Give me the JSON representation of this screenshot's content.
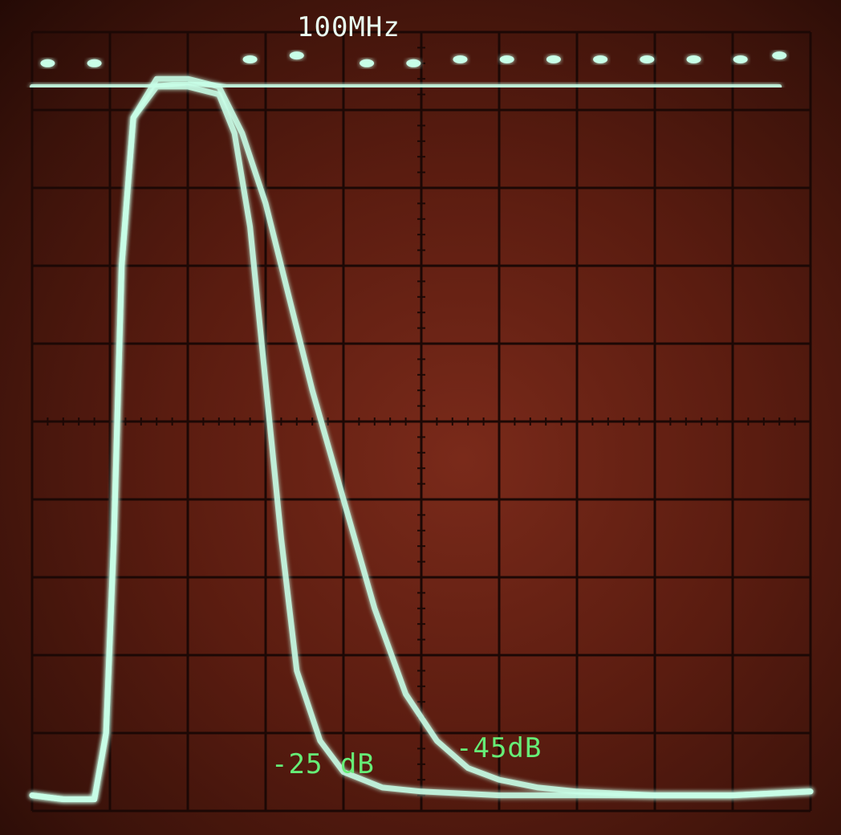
{
  "chart_data": {
    "type": "line",
    "title": "100MHz",
    "xlabel": "",
    "ylabel": "",
    "xlim": [
      0,
      10
    ],
    "ylim": [
      0,
      10
    ],
    "grid": true,
    "grid_divisions": {
      "x": 10,
      "y": 10
    },
    "series": [
      {
        "x": [
          0.0,
          0.4,
          0.8,
          0.95,
          1.05,
          1.15,
          1.3,
          1.6,
          2.0,
          2.4,
          2.6,
          2.8,
          3.0,
          3.2,
          3.4,
          3.7,
          4.0,
          4.5,
          5.0,
          6.0,
          7.0,
          8.0,
          9.0,
          10.0
        ],
        "y": [
          0.2,
          0.15,
          0.15,
          1.0,
          3.5,
          7.0,
          8.9,
          9.3,
          9.3,
          9.2,
          8.7,
          7.5,
          5.5,
          3.5,
          1.8,
          0.9,
          0.5,
          0.3,
          0.25,
          0.2,
          0.2,
          0.2,
          0.2,
          0.25
        ]
      },
      {
        "x": [
          0.0,
          0.4,
          0.8,
          0.95,
          1.05,
          1.15,
          1.3,
          1.6,
          2.0,
          2.4,
          2.7,
          3.0,
          3.3,
          3.6,
          4.0,
          4.4,
          4.8,
          5.2,
          5.6,
          6.0,
          6.5,
          7.0,
          8.0,
          9.0,
          10.0
        ],
        "y": [
          0.2,
          0.15,
          0.15,
          1.0,
          3.5,
          7.0,
          8.9,
          9.4,
          9.4,
          9.3,
          8.7,
          7.8,
          6.6,
          5.4,
          4.0,
          2.6,
          1.5,
          0.9,
          0.55,
          0.4,
          0.3,
          0.25,
          0.2,
          0.2,
          0.25
        ]
      },
      {
        "x": [
          0.0,
          0.5,
          1.0,
          1.5,
          2.0,
          2.5,
          3.0,
          3.5,
          4.0,
          5.0,
          6.0,
          7.0,
          8.0,
          9.0,
          9.6
        ],
        "y": [
          9.3,
          9.3,
          9.3,
          9.3,
          9.35,
          9.3,
          9.3,
          9.3,
          9.3,
          9.3,
          9.3,
          9.3,
          9.3,
          9.3,
          9.3
        ]
      }
    ],
    "markers": {
      "x": [
        0.2,
        0.8,
        2.8,
        3.4,
        4.3,
        4.9,
        5.5,
        6.1,
        6.7,
        7.3,
        7.9,
        8.5,
        9.1,
        9.6
      ],
      "y": [
        9.6,
        9.6,
        9.65,
        9.7,
        9.6,
        9.6,
        9.65,
        9.65,
        9.65,
        9.65,
        9.65,
        9.65,
        9.65,
        9.7
      ]
    },
    "annotations": [
      {
        "text": "-25 dB",
        "x": 3.1,
        "y": 0.6,
        "color": "#66ee77"
      },
      {
        "text": "-45dB",
        "x": 5.5,
        "y": 0.85,
        "color": "#66ee77"
      }
    ]
  },
  "colors": {
    "trace": "#c8ffe8",
    "grid": "#1c0805",
    "annotation": "#66ee77",
    "title": "#eafff2"
  }
}
